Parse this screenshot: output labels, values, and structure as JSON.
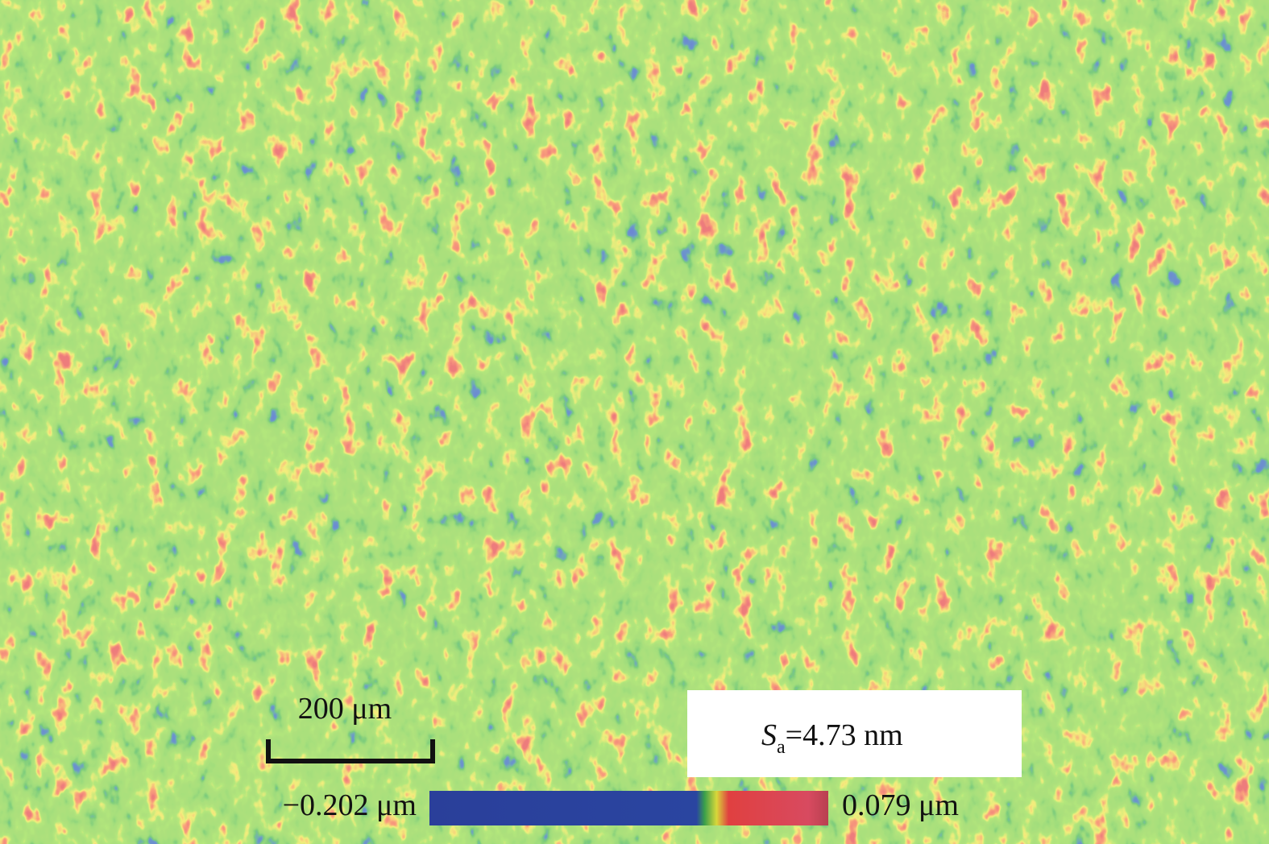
{
  "scale_bar": {
    "label": "200 μm"
  },
  "roughness": {
    "symbol": "S",
    "subscript": "a",
    "value": "=4.73 nm"
  },
  "color_bar": {
    "min_label": "−0.202 μm",
    "max_label": "0.079 μm"
  }
}
